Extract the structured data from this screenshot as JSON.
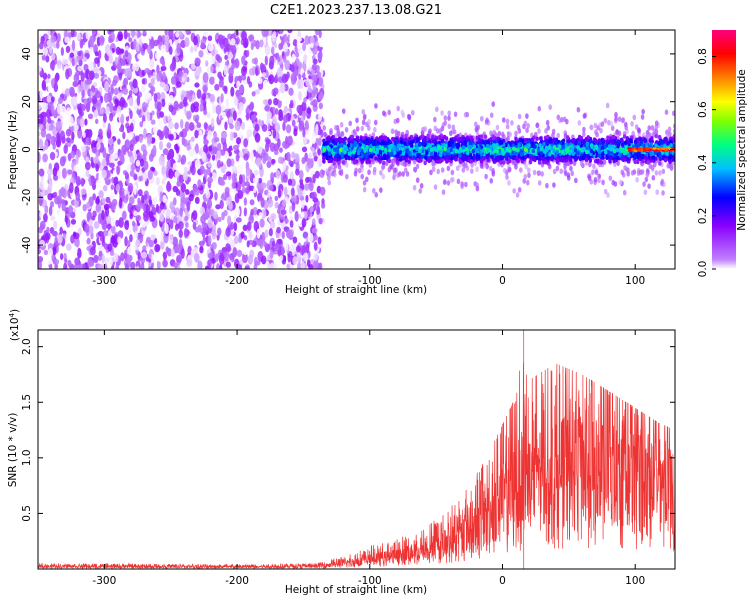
{
  "title": "C2E1.2023.237.13.08.G21",
  "colors": {
    "snr_line": "#ee3333",
    "background": "#ffffff",
    "axes": "#000000"
  },
  "chart_data": [
    {
      "type": "heatmap",
      "xlabel": "Height of straight line (km)",
      "ylabel": "Frequency (Hz)",
      "xlim": [
        -350,
        130
      ],
      "ylim": [
        -50,
        50
      ],
      "x_ticks": [
        -300,
        -200,
        -100,
        0,
        100
      ],
      "y_ticks": [
        -40,
        -20,
        0,
        20,
        40
      ],
      "grid": false,
      "colorbar": {
        "label": "Normalized spectral amplitude",
        "range": [
          0.0,
          0.9
        ],
        "ticks": [
          0.0,
          0.2,
          0.4,
          0.6,
          0.8
        ],
        "colormap": [
          "#ffffff",
          "#8a00ff",
          "#0000ff",
          "#00ffff",
          "#00ff00",
          "#ffff00",
          "#ff8000",
          "#ff0000",
          "#ff0080"
        ]
      },
      "regions": [
        {
          "x_range": [
            -350,
            -135
          ],
          "freq_range": [
            -50,
            50
          ],
          "amplitude_range": [
            0.0,
            0.15
          ],
          "description": "broadband noise"
        },
        {
          "x_range": [
            -135,
            130
          ],
          "freq_center": 0,
          "freq_halfwidth": 6,
          "amplitude_range": [
            0.1,
            0.5
          ]
        },
        {
          "x_range": [
            95,
            130
          ],
          "freq_center": 0,
          "amplitude_peak": 0.85
        }
      ]
    },
    {
      "type": "line",
      "xlabel": "Height of straight line (km)",
      "ylabel": "SNR (10 * v/v)",
      "y_multiplier_label": "(x10",
      "y_multiplier_exp": "4",
      "xlim": [
        -350,
        130
      ],
      "ylim": [
        0,
        21500
      ],
      "x_ticks": [
        -300,
        -200,
        -100,
        0,
        100
      ],
      "y_ticks": [
        "0.5",
        "1.0",
        "1.5",
        "2.0"
      ],
      "y_tick_values": [
        5000,
        10000,
        15000,
        20000
      ],
      "grid": false,
      "envelope": {
        "x": [
          -350,
          -300,
          -200,
          -140,
          -120,
          -100,
          -80,
          -60,
          -40,
          -20,
          -10,
          0,
          10,
          16,
          20,
          40,
          60,
          80,
          100,
          120,
          130
        ],
        "y_max": [
          500,
          500,
          400,
          500,
          1200,
          2500,
          3000,
          3500,
          5500,
          8500,
          10500,
          13000,
          15500,
          21500,
          17000,
          18500,
          17500,
          16000,
          14500,
          13000,
          12500
        ],
        "y_typical": [
          250,
          220,
          200,
          250,
          500,
          900,
          1200,
          1600,
          2500,
          3800,
          5000,
          6500,
          7500,
          8500,
          8500,
          9000,
          9200,
          8800,
          8300,
          7800,
          7500
        ]
      }
    }
  ]
}
